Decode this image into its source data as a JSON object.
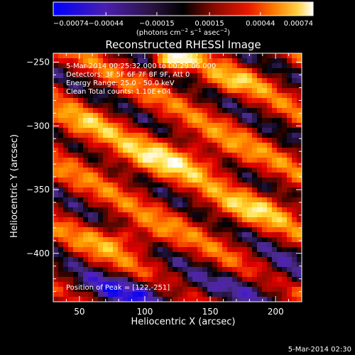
{
  "chart_data": {
    "type": "heatmap",
    "title": "Reconstructed RHESSI Image",
    "xlabel": "Heliocentric X (arcsec)",
    "ylabel": "Heliocentric Y (arcsec)",
    "xlim": [
      30,
      220
    ],
    "ylim": [
      -438,
      -243
    ],
    "x_ticks": [
      50,
      100,
      150,
      200
    ],
    "x_tick_labels": [
      "50",
      "100",
      "150",
      "200"
    ],
    "y_ticks": [
      -250,
      -300,
      -350,
      -400
    ],
    "y_tick_labels": [
      "−250",
      "−300",
      "−350",
      "−400"
    ],
    "colorbar": {
      "range": [
        -0.00074,
        0.00074
      ],
      "ticks": [
        -0.00074,
        -0.00044,
        -0.00015,
        0.00015,
        0.00044,
        0.00074
      ],
      "tick_labels": [
        "−0.00074",
        "−0.00044",
        "−0.00015",
        "0.00015",
        "0.00044",
        "0.00074"
      ],
      "unit_prefix": "(photons cm",
      "unit_sup1": "−2",
      "unit_mid": " s",
      "unit_sup2": "−1",
      "unit_post": " asec",
      "unit_sup3": "−2",
      "unit_suffix": ")"
    },
    "annotations": [
      "5-Mar-2014 00:25:32.000 to 00:29:06.000",
      "Detectors: 3F 5F 6F 7F 8F 9F, Att 0",
      "Energy Range: 25.0 - 50.0 keV",
      "Clean    Total counts: 1.10E+04"
    ],
    "peak_label": "Position of Peak = [122,-251]",
    "peak_position": [
      122,
      -251
    ],
    "colormap": [
      "#0000ff",
      "#5020c0",
      "#4a2a8a",
      "#000000",
      "#8a0a00",
      "#e00000",
      "#ff5a00",
      "#ff9a00",
      "#ffe040",
      "#ffffff"
    ]
  },
  "footer": {
    "timestamp": "5-Mar-2014 02:30"
  }
}
